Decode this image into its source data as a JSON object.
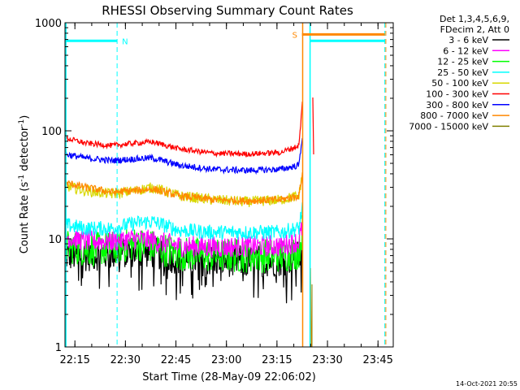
{
  "chart_data": {
    "type": "line",
    "title": "RHESSI Observing Summary Count Rates",
    "xlabel": "Start Time (28-May-09 22:06:02)",
    "ylabel_main": "Count Rate (s",
    "ylabel_sup1": "-1",
    "ylabel_mid": " detector",
    "ylabel_sup2": "-1",
    "ylabel_end": ")",
    "yscale": "log",
    "ylim": [
      1,
      1000
    ],
    "xlim": [
      6.03,
      103.5
    ],
    "x_unit": "minutes after 22:06:02",
    "x_ticks": [
      {
        "x": 8.97,
        "label": "22:15"
      },
      {
        "x": 23.97,
        "label": "22:30"
      },
      {
        "x": 38.97,
        "label": "22:45"
      },
      {
        "x": 53.97,
        "label": "23:00"
      },
      {
        "x": 68.97,
        "label": "23:15"
      },
      {
        "x": 83.97,
        "label": "23:30"
      },
      {
        "x": 98.97,
        "label": "23:45"
      }
    ],
    "y_ticks": [
      {
        "y": 1,
        "label": "1"
      },
      {
        "y": 10,
        "label": "10"
      },
      {
        "y": 100,
        "label": "100"
      },
      {
        "y": 1000,
        "label": "1000"
      }
    ],
    "legend_header": [
      "Det 1,3,4,5,6,9,",
      "FDecim 2, Att 0"
    ],
    "series": [
      {
        "name": "3 - 6 keV",
        "color": "#000000",
        "x": [
          6.03,
          12,
          20,
          27,
          32,
          40,
          50,
          60,
          70,
          75.5,
          76.5
        ],
        "y": [
          7,
          7,
          7.3,
          7.7,
          7.5,
          6.5,
          6.3,
          6.2,
          6.3,
          6.8,
          7.5
        ]
      },
      {
        "name": "6 - 12 keV",
        "color": "#ff00ff",
        "x": [
          6.03,
          12,
          20,
          27,
          32,
          40,
          50,
          60,
          70,
          75.5,
          76.5
        ],
        "y": [
          10.5,
          9.6,
          9.5,
          10,
          9.6,
          8.6,
          8.4,
          8.5,
          8.6,
          9.5,
          13
        ]
      },
      {
        "name": "12 - 25 keV",
        "color": "#00ff00",
        "x": [
          6.03,
          12,
          20,
          27,
          32,
          40,
          50,
          60,
          70,
          75.5,
          76.5
        ],
        "y": [
          8.5,
          8,
          8.2,
          9,
          8.5,
          7.3,
          7,
          7,
          7,
          7.5,
          12
        ]
      },
      {
        "name": "25 - 50 keV",
        "color": "#00ffff",
        "x": [
          6.03,
          12,
          20,
          27,
          32,
          40,
          50,
          60,
          70,
          75.5,
          76.5
        ],
        "y": [
          13.5,
          12.5,
          12.5,
          14,
          14.5,
          12,
          11.5,
          11.5,
          11.5,
          12.5,
          20
        ]
      },
      {
        "name": "50 - 100 keV",
        "color": "#d8d800",
        "x": [
          6.03,
          12,
          20,
          27,
          32,
          40,
          50,
          60,
          70,
          75.5,
          76.5
        ],
        "y": [
          31,
          28,
          26,
          28,
          30,
          25,
          23,
          22,
          23,
          25,
          40
        ]
      },
      {
        "name": "100 - 300 keV",
        "color": "#ff0000",
        "x": [
          6.03,
          12,
          20,
          27,
          32,
          40,
          50,
          60,
          70,
          75.5,
          76.5
        ],
        "y": [
          86,
          77,
          73,
          77,
          79,
          68,
          62,
          61,
          63,
          73,
          180
        ]
      },
      {
        "name": "300 - 800 keV",
        "color": "#0000ff",
        "x": [
          6.03,
          12,
          20,
          27,
          32,
          40,
          50,
          60,
          70,
          75.5,
          76.5
        ],
        "y": [
          61,
          56,
          53,
          55,
          56,
          48,
          44,
          43,
          44,
          48,
          90
        ]
      },
      {
        "name": "800 - 7000 keV",
        "color": "#ff8800",
        "x": [
          6.03,
          12,
          20,
          27,
          32,
          40,
          50,
          60,
          70,
          75.5,
          76.5
        ],
        "y": [
          33,
          30,
          27,
          28,
          29,
          25,
          23,
          22.5,
          23,
          25,
          40
        ]
      },
      {
        "name": "7000 - 15000 keV",
        "color": "#808000",
        "x": [
          6.03,
          12,
          20,
          27,
          32,
          40,
          50,
          60,
          70,
          75.5,
          76.5
        ],
        "y": [
          1,
          1,
          1,
          1,
          1,
          1,
          1,
          1,
          1,
          1,
          1
        ]
      }
    ],
    "flag_bars": [
      {
        "label": "N",
        "color": "#00ffff",
        "x_start": 6.03,
        "x_end": 21.5,
        "y": 680
      },
      {
        "label": "S",
        "color": "#ff8800",
        "x_start": 76.4,
        "x_end": 101.0,
        "y": 780
      },
      {
        "label": "",
        "color": "#00ffff",
        "x_start": 78.8,
        "x_end": 101.0,
        "y": 680
      }
    ],
    "dashed_markers": [
      {
        "x": 21.5,
        "color": "#00ffff"
      },
      {
        "x": 101.0,
        "color": "#00ffff"
      },
      {
        "x": 101.3,
        "color": "#ff8800"
      }
    ],
    "solid_markers": [
      {
        "x": 6.3,
        "color": "#00ffff"
      },
      {
        "x": 76.6,
        "color": "#ff8800"
      },
      {
        "x": 78.8,
        "color": "#00ffff"
      }
    ],
    "timestamp": "14-Oct-2021 20:55",
    "grid": false,
    "legend_placement": "top-right outside"
  }
}
